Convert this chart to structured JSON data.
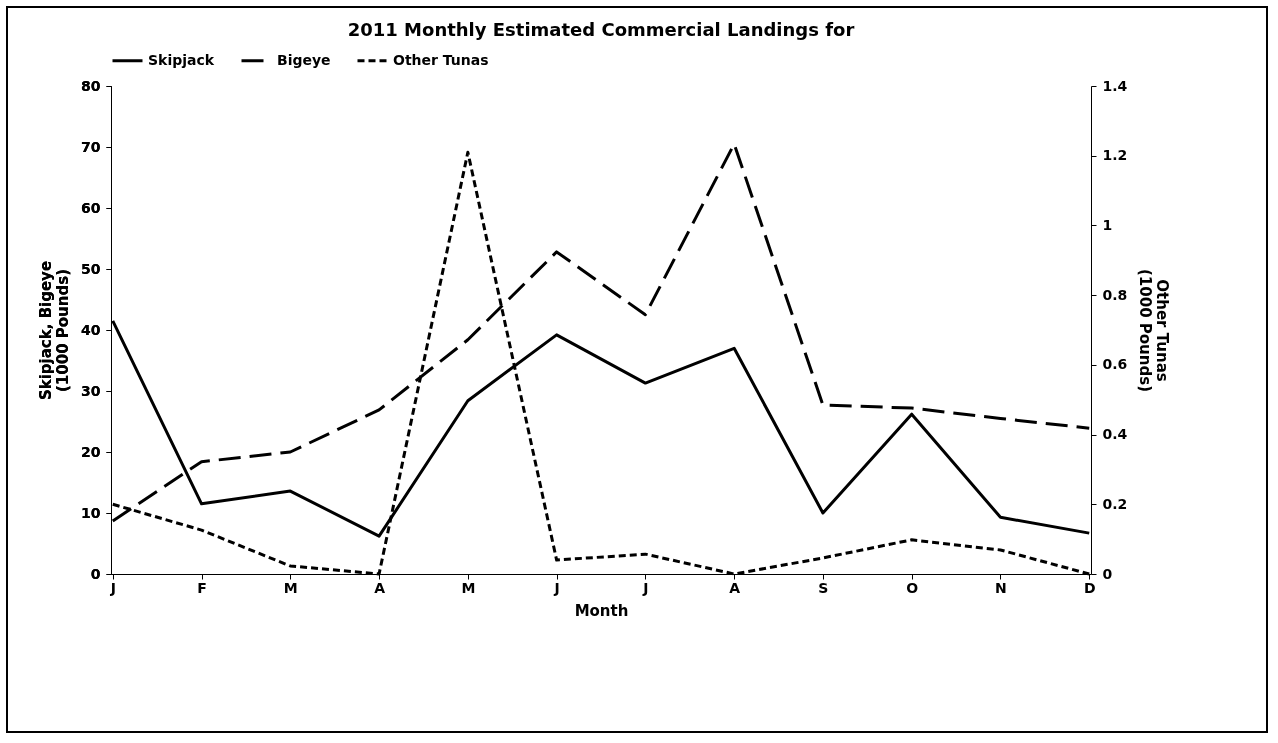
{
  "chart_data": {
    "type": "line",
    "title": "2011 Monthly Estimated Commercial Landings for",
    "xlabel": "Month",
    "ylabel": "Skipjack, Bigeye\n(1000 Pounds)",
    "y2label": "Other Tunas\n(1000 Pounds)",
    "categories": [
      "J",
      "F",
      "M",
      "A",
      "M",
      "J",
      "J",
      "A",
      "S",
      "O",
      "N",
      "D"
    ],
    "series": [
      {
        "name": "Skipjack",
        "color": "#000000",
        "line_style": "solid",
        "values": [
          41.5,
          11.5,
          13.6,
          6.2,
          28.4,
          39.2,
          31.3,
          37,
          10,
          26.2,
          9.3,
          6.7
        ]
      },
      {
        "name": "Bigeye",
        "color": "#000000",
        "line_style": "dashed",
        "values": [
          8.7,
          18.4,
          20,
          26.9,
          38.4,
          52.8,
          42.5,
          70.5,
          27.7,
          27.2,
          25.5,
          23.9
        ]
      },
      {
        "name": "Other Tunas",
        "color": "#000000",
        "line_style": "dotted",
        "axis": "y2",
        "values": [
          0.2,
          0.126,
          0.023,
          0,
          1.21,
          0.04,
          0.057,
          0,
          0.046,
          0.098,
          0.069,
          0
        ]
      }
    ],
    "ylim": [
      0,
      80
    ],
    "yticks": [
      0,
      10,
      20,
      30,
      40,
      50,
      60,
      70,
      80
    ],
    "y2lim": [
      0,
      1.4
    ],
    "y2ticks": [
      0,
      0.2,
      0.4,
      0.6,
      0.8,
      1,
      1.2,
      1.4
    ],
    "legend": "top",
    "grid": false,
    "marker": "none"
  }
}
